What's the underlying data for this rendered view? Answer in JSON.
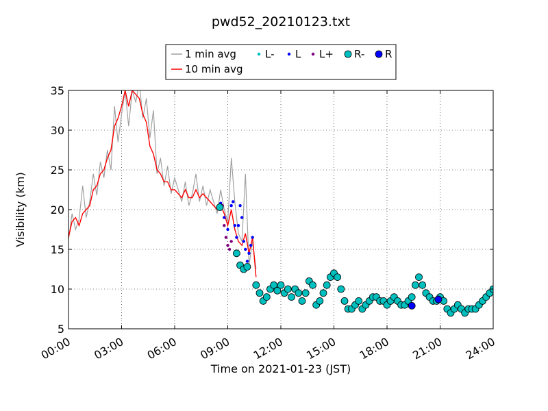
{
  "chart_data": {
    "type": "line",
    "title": "pwd52_20210123.txt",
    "xlabel": "Time on 2021-01-23 (JST)",
    "ylabel": "Visibility (km)",
    "x_unit": "hours",
    "xlim": [
      0,
      24
    ],
    "ylim": [
      5,
      35
    ],
    "x_ticks": [
      0,
      3,
      6,
      9,
      12,
      15,
      18,
      21,
      24
    ],
    "x_tick_labels": [
      "00:00",
      "03:00",
      "06:00",
      "09:00",
      "12:00",
      "15:00",
      "18:00",
      "21:00",
      "24:00"
    ],
    "y_ticks": [
      5,
      10,
      15,
      20,
      25,
      30,
      35
    ],
    "y_tick_labels": [
      "5",
      "10",
      "15",
      "20",
      "25",
      "30",
      "35"
    ],
    "grid": true,
    "legend_placement": "top-center",
    "legend": [
      "1 min avg",
      "L-",
      "L",
      "L+",
      "R-",
      "R",
      "10 min avg"
    ],
    "series": [
      {
        "name": "1 min avg",
        "kind": "line",
        "color": "#a0a0a0",
        "x": [
          0,
          0.2,
          0.4,
          0.6,
          0.8,
          1.0,
          1.2,
          1.4,
          1.6,
          1.8,
          2.0,
          2.2,
          2.4,
          2.6,
          2.8,
          3.0,
          3.2,
          3.4,
          3.6,
          3.8,
          4.0,
          4.2,
          4.4,
          4.6,
          4.8,
          5.0,
          5.2,
          5.4,
          5.6,
          5.8,
          6.0,
          6.2,
          6.4,
          6.6,
          6.8,
          7.0,
          7.2,
          7.4,
          7.6,
          7.8,
          8.0,
          8.2,
          8.4,
          8.6,
          8.8,
          9.0,
          9.2,
          9.4,
          9.6,
          9.8,
          10.0,
          10.2,
          10.4,
          10.6
        ],
        "y": [
          16.2,
          19.5,
          17.5,
          18.8,
          23.0,
          19.0,
          21.0,
          24.5,
          21.8,
          26.0,
          24.0,
          27.5,
          25.0,
          33.0,
          28.5,
          32.0,
          35.0,
          30.5,
          35.0,
          33.5,
          36.0,
          31.5,
          34.0,
          29.0,
          32.5,
          24.5,
          26.5,
          23.0,
          25.5,
          22.0,
          24.0,
          22.5,
          21.0,
          23.5,
          20.5,
          22.0,
          24.5,
          21.0,
          23.0,
          20.5,
          22.5,
          21.0,
          19.5,
          22.5,
          20.0,
          18.5,
          26.5,
          21.0,
          17.0,
          16.0,
          24.5,
          13.0,
          16.0,
          12.5
        ]
      },
      {
        "name": "10 min avg",
        "kind": "line",
        "color": "#ff0000",
        "x": [
          0,
          0.2,
          0.4,
          0.6,
          0.8,
          1.0,
          1.2,
          1.4,
          1.6,
          1.8,
          2.0,
          2.2,
          2.4,
          2.6,
          2.8,
          3.0,
          3.2,
          3.4,
          3.6,
          3.8,
          4.0,
          4.2,
          4.4,
          4.6,
          4.8,
          5.0,
          5.2,
          5.4,
          5.6,
          5.8,
          6.0,
          6.2,
          6.4,
          6.6,
          6.8,
          7.0,
          7.2,
          7.4,
          7.6,
          7.8,
          8.0,
          8.2,
          8.4,
          8.6,
          8.8,
          9.0,
          9.2,
          9.4,
          9.6,
          9.8,
          10.0,
          10.2,
          10.4,
          10.6
        ],
        "y": [
          16.5,
          18.5,
          19.0,
          18.0,
          19.5,
          20.0,
          20.5,
          22.5,
          23.0,
          24.5,
          25.0,
          26.5,
          27.5,
          30.5,
          31.5,
          33.0,
          35.0,
          33.0,
          35.0,
          34.5,
          34.0,
          32.0,
          31.0,
          28.0,
          27.0,
          25.0,
          24.5,
          23.5,
          23.5,
          22.5,
          22.5,
          22.0,
          21.5,
          22.5,
          21.5,
          21.5,
          22.5,
          21.5,
          22.0,
          21.5,
          21.0,
          20.5,
          20.0,
          20.5,
          19.5,
          18.0,
          20.0,
          17.5,
          16.0,
          15.5,
          17.0,
          14.5,
          16.5,
          11.5
        ]
      },
      {
        "name": "L-",
        "kind": "points",
        "color": "#00bfbf",
        "x": [],
        "y": []
      },
      {
        "name": "L",
        "kind": "points",
        "color": "#0000ff",
        "x": [
          8.6,
          8.8,
          9.0,
          9.2,
          9.3,
          9.4,
          9.5,
          9.6,
          9.7,
          9.8,
          9.9,
          10.0,
          10.1,
          10.2,
          10.3,
          10.4
        ],
        "y": [
          20.8,
          19.0,
          17.5,
          20.5,
          21.0,
          18.0,
          16.5,
          18.0,
          20.5,
          19.0,
          16.0,
          15.0,
          13.5,
          14.5,
          15.5,
          16.5
        ]
      },
      {
        "name": "L+",
        "kind": "points",
        "color": "#800080",
        "x": [
          8.7,
          8.8,
          8.9,
          9.0,
          9.1,
          9.2
        ],
        "y": [
          20.5,
          18.0,
          16.5,
          15.5,
          15.0,
          16.0
        ]
      },
      {
        "name": "R-",
        "kind": "points",
        "color": "#00bfbf",
        "x": [
          8.55,
          9.5,
          9.7,
          9.9,
          10.1,
          10.6,
          10.8,
          11.0,
          11.2,
          11.4,
          11.6,
          11.8,
          12.0,
          12.2,
          12.4,
          12.6,
          12.8,
          13.0,
          13.2,
          13.4,
          13.6,
          13.8,
          14.0,
          14.2,
          14.4,
          14.6,
          14.8,
          15.0,
          15.2,
          15.4,
          15.6,
          15.8,
          16.0,
          16.2,
          16.4,
          16.6,
          16.8,
          17.0,
          17.2,
          17.4,
          17.6,
          17.8,
          18.0,
          18.2,
          18.4,
          18.6,
          18.8,
          19.0,
          19.2,
          19.4,
          19.6,
          19.8,
          20.0,
          20.2,
          20.4,
          20.6,
          20.8,
          21.0,
          21.2,
          21.4,
          21.6,
          21.8,
          22.0,
          22.2,
          22.4,
          22.6,
          22.8,
          23.0,
          23.2,
          23.4,
          23.6,
          23.8,
          24.0
        ],
        "y": [
          20.3,
          14.5,
          13.0,
          12.5,
          12.8,
          10.5,
          9.5,
          8.5,
          9.0,
          10.0,
          10.5,
          9.8,
          10.5,
          9.5,
          10.0,
          9.0,
          10.0,
          9.5,
          8.5,
          9.5,
          11.0,
          10.5,
          8.0,
          8.5,
          9.5,
          10.5,
          11.5,
          12.0,
          11.5,
          10.0,
          8.5,
          7.5,
          7.5,
          8.0,
          8.5,
          7.5,
          8.0,
          8.5,
          9.0,
          9.0,
          8.5,
          8.5,
          8.0,
          8.5,
          9.0,
          8.5,
          8.0,
          8.0,
          8.5,
          9.0,
          10.5,
          11.5,
          10.5,
          9.5,
          9.0,
          8.5,
          8.5,
          9.0,
          8.5,
          7.5,
          7.0,
          7.5,
          8.0,
          7.5,
          7.0,
          7.5,
          7.5,
          7.5,
          8.0,
          8.5,
          9.0,
          9.5,
          10.0
        ]
      },
      {
        "name": "R",
        "kind": "points",
        "color": "#0000ff",
        "x": [
          19.4,
          20.9
        ],
        "y": [
          7.9,
          8.7
        ]
      }
    ]
  }
}
